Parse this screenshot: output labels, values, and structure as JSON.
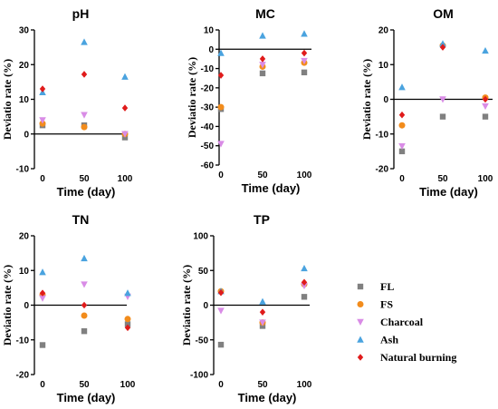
{
  "legend": [
    {
      "name": "FL",
      "color": "#808080",
      "shape": "square"
    },
    {
      "name": "FS",
      "color": "#f28c1c",
      "shape": "circle"
    },
    {
      "name": "Charcoal",
      "color": "#d98ce6",
      "shape": "triangle-down"
    },
    {
      "name": "Ash",
      "color": "#4aa3df",
      "shape": "triangle-up"
    },
    {
      "name": "Natural burning",
      "color": "#e01b1b",
      "shape": "diamond"
    }
  ],
  "chart_data": [
    {
      "type": "scatter",
      "title": "pH",
      "xlabel": "Time (day)",
      "ylabel": "Deviatio rate (%)",
      "x": [
        0,
        50,
        100
      ],
      "xticks": [
        0,
        50,
        100
      ],
      "ylim": [
        -10,
        30
      ],
      "yticks": [
        -10,
        0,
        10,
        20,
        30
      ],
      "series": [
        {
          "name": "FL",
          "values": [
            2.5,
            2.5,
            -1
          ]
        },
        {
          "name": "FS",
          "values": [
            3,
            2,
            0
          ]
        },
        {
          "name": "Charcoal",
          "values": [
            4,
            5.5,
            0
          ]
        },
        {
          "name": "Ash",
          "values": [
            12,
            26.5,
            16.5
          ]
        },
        {
          "name": "Natural burning",
          "values": [
            13,
            17.2,
            7.5
          ]
        }
      ]
    },
    {
      "type": "scatter",
      "title": "MC",
      "xlabel": "Time (day)",
      "ylabel": "Deviatio rate (%)",
      "x": [
        0,
        50,
        100
      ],
      "xticks": [
        0,
        50,
        100
      ],
      "ylim": [
        -60,
        10
      ],
      "yticks": [
        -60,
        -50,
        -40,
        -30,
        -20,
        -10,
        0,
        10
      ],
      "series": [
        {
          "name": "FL",
          "values": [
            -31,
            -12.5,
            -12
          ]
        },
        {
          "name": "FS",
          "values": [
            -30,
            -9,
            -7
          ]
        },
        {
          "name": "Charcoal",
          "values": [
            -49,
            -8,
            -6
          ]
        },
        {
          "name": "Ash",
          "values": [
            -2,
            7,
            8
          ]
        },
        {
          "name": "Natural burning",
          "values": [
            -13.5,
            -5,
            -2
          ]
        }
      ]
    },
    {
      "type": "scatter",
      "title": "OM",
      "xlabel": "Time (day)",
      "ylabel": "Deviatio rate (%)",
      "x": [
        0,
        50,
        100
      ],
      "xticks": [
        0,
        50,
        100
      ],
      "ylim": [
        -20,
        20
      ],
      "yticks": [
        -20,
        -10,
        0,
        10,
        20
      ],
      "series": [
        {
          "name": "FL",
          "values": [
            -15,
            -5,
            -5
          ]
        },
        {
          "name": "FS",
          "values": [
            -7.5,
            15.5,
            0.5
          ]
        },
        {
          "name": "Charcoal",
          "values": [
            -13.5,
            0,
            -2
          ]
        },
        {
          "name": "Ash",
          "values": [
            3.5,
            16,
            14
          ]
        },
        {
          "name": "Natural burning",
          "values": [
            -4.5,
            15,
            0
          ]
        }
      ]
    },
    {
      "type": "scatter",
      "title": "TN",
      "xlabel": "Time (day)",
      "ylabel": "Deviatio rate (%)",
      "x": [
        0,
        50,
        100
      ],
      "xticks": [
        0,
        50,
        100
      ],
      "ylim": [
        -20,
        20
      ],
      "yticks": [
        -20,
        -10,
        0,
        10,
        20
      ],
      "series": [
        {
          "name": "FL",
          "values": [
            -11.5,
            -7.5,
            -5.5
          ]
        },
        {
          "name": "FS",
          "values": [
            3,
            -3,
            -4
          ]
        },
        {
          "name": "Charcoal",
          "values": [
            2,
            6,
            2.5
          ]
        },
        {
          "name": "Ash",
          "values": [
            9.5,
            13.5,
            3.5
          ]
        },
        {
          "name": "Natural burning",
          "values": [
            3.5,
            0,
            -6.5
          ]
        }
      ]
    },
    {
      "type": "scatter",
      "title": "TP",
      "xlabel": "Time (day)",
      "ylabel": "Deviatio rate (%)",
      "x": [
        0,
        50,
        100
      ],
      "xticks": [
        0,
        50,
        100
      ],
      "ylim": [
        -100,
        100
      ],
      "yticks": [
        -100,
        -50,
        0,
        50,
        100
      ],
      "series": [
        {
          "name": "FL",
          "values": [
            -57,
            -30,
            12
          ]
        },
        {
          "name": "FS",
          "values": [
            20,
            -25,
            30
          ]
        },
        {
          "name": "Charcoal",
          "values": [
            -8,
            -25,
            28
          ]
        },
        {
          "name": "Ash",
          "values": [
            20,
            5,
            53
          ]
        },
        {
          "name": "Natural burning",
          "values": [
            18,
            -10,
            33
          ]
        }
      ]
    }
  ]
}
